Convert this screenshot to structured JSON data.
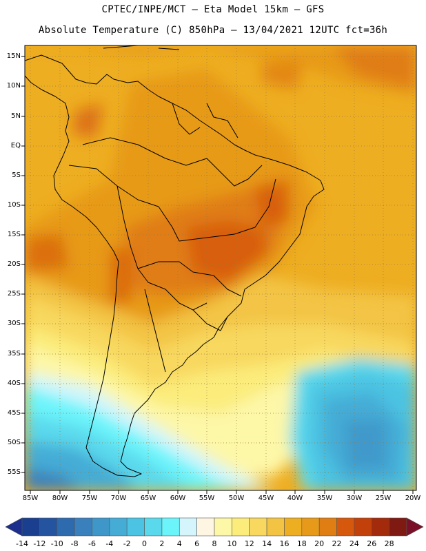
{
  "header": {
    "title_line1": "CPTEC/INPE/MCT –  Eta Model 15km – GFS",
    "title_line2": "Absolute Temperature (C) 850hPa – 13/04/2021 12UTC fct=36h"
  },
  "map": {
    "lat_labels": [
      "15N",
      "10N",
      "5N",
      "EQ",
      "5S",
      "10S",
      "15S",
      "20S",
      "25S",
      "30S",
      "35S",
      "40S",
      "45S",
      "50S",
      "55S"
    ],
    "lon_labels": [
      "85W",
      "80W",
      "75W",
      "70W",
      "65W",
      "60W",
      "55W",
      "50W",
      "45W",
      "40W",
      "35W",
      "30W",
      "25W",
      "20W"
    ]
  },
  "colorbar": {
    "labels": [
      "-14",
      "-12",
      "-10",
      "-8",
      "-6",
      "-4",
      "-2",
      "0",
      "2",
      "4",
      "6",
      "8",
      "10",
      "12",
      "14",
      "16",
      "18",
      "20",
      "22",
      "24",
      "26",
      "28"
    ],
    "colors": [
      "#1a3f8f",
      "#24549f",
      "#2e6aae",
      "#3a80bd",
      "#3f97c9",
      "#45acd6",
      "#4cc3e2",
      "#5ad8ec",
      "#6cf4fb",
      "#d3f5fb",
      "#fef6e2",
      "#fdf7a8",
      "#fbec7c",
      "#f8d85e",
      "#f3c444",
      "#eeae22",
      "#e79a19",
      "#e07d13",
      "#d6580c",
      "#c2410b",
      "#a32a0b",
      "#7e1a12"
    ],
    "low_end_color": "#1c2f8c",
    "high_end_color": "#7a0f28"
  }
}
